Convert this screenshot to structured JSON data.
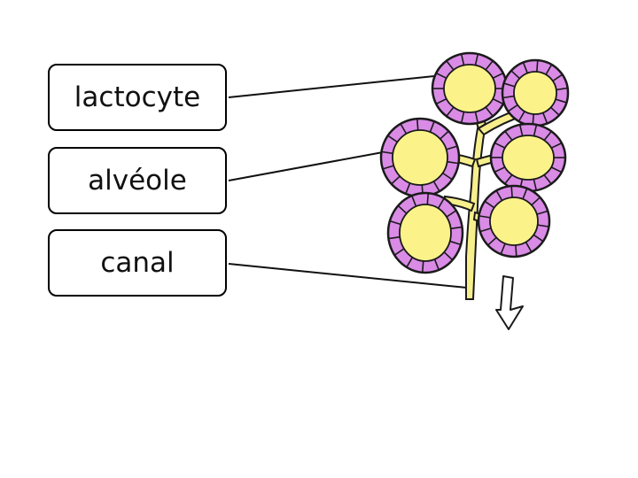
{
  "labels": {
    "lactocyte": "lactocyte",
    "alveole": "alvéole",
    "canal": "canal"
  },
  "colors": {
    "alveolus_wall": "#d98be6",
    "alveolus_lumen": "#fbf38a",
    "duct": "#f7ef8c",
    "outline": "#1a1a1a",
    "arrow": "#ffffff"
  },
  "icons": {
    "flow_arrow": "arrow-down-icon"
  }
}
